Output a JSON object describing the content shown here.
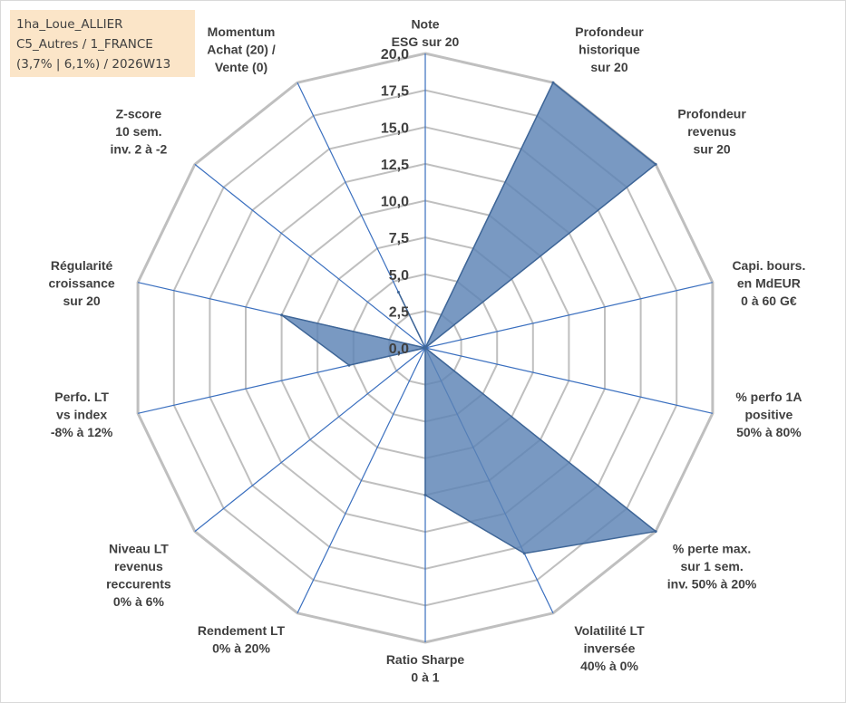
{
  "info_box": {
    "line1": "1ha_Loue_ALLIER",
    "line2": "C5_Autres / 1_FRANCE",
    "line3": "(3,7% | 6,1%) / 2026W13"
  },
  "colors": {
    "fill": "#5b82b4",
    "stroke": "#3f6697",
    "grid": "#bfbfbf",
    "spoke": "#3a6fbf",
    "text": "#404040",
    "info_box_bg": "#fbe5c8"
  },
  "chart_data": {
    "type": "radar",
    "r_range": [
      0,
      20
    ],
    "tick_labels": [
      "0,0",
      "2,5",
      "5,0",
      "7,5",
      "10,0",
      "12,5",
      "15,0",
      "17,5",
      "20,0"
    ],
    "grid": true,
    "categories": [
      [
        "Note",
        "ESG sur 20"
      ],
      [
        "Profondeur",
        "historique",
        "sur 20"
      ],
      [
        "Profondeur",
        "revenus",
        "sur 20"
      ],
      [
        "Capi. bours.",
        "en MdEUR",
        "0 à 60 G€"
      ],
      [
        "% perfo 1A",
        "positive",
        "50% à 80%"
      ],
      [
        "% perte max.",
        "sur 1 sem.",
        "inv. 50% à 20%"
      ],
      [
        "Volatilité LT",
        "inversée",
        "40% à 0%"
      ],
      [
        "Ratio Sharpe",
        "0 à 1"
      ],
      [
        "Rendement LT",
        "0% à 20%"
      ],
      [
        "Niveau LT",
        "revenus",
        "reccurents",
        "0% à 6%"
      ],
      [
        "Perfo. LT",
        "vs index",
        "-8% à 12%"
      ],
      [
        "Régularité",
        "croissance",
        "sur 20"
      ],
      [
        "Z-score",
        "10 sem.",
        "inv. 2 à -2"
      ],
      [
        "Momentum",
        "Achat (20) /",
        "Vente (0)"
      ]
    ],
    "values": [
      0,
      20,
      20,
      0,
      0,
      20,
      15.5,
      10,
      0,
      0,
      5.3,
      10,
      0,
      4.2
    ]
  }
}
